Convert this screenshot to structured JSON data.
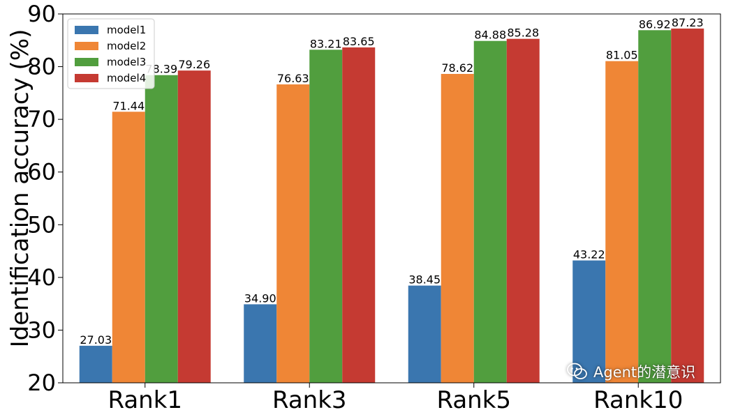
{
  "chart_data": {
    "type": "bar",
    "title": "",
    "xlabel": "",
    "ylabel": "Identification accuracy (%)",
    "ylim": [
      20,
      90
    ],
    "yticks": [
      20,
      30,
      40,
      50,
      60,
      70,
      80,
      90
    ],
    "grid": false,
    "legend_position": "top-left",
    "categories": [
      "Rank1",
      "Rank3",
      "Rank5",
      "Rank10"
    ],
    "series": [
      {
        "name": "model1",
        "color": "#3a76af",
        "values": [
          27.03,
          34.9,
          38.45,
          43.22
        ],
        "labels": [
          "27.03",
          "34.90",
          "38.45",
          "43.22"
        ]
      },
      {
        "name": "model2",
        "color": "#ef8636",
        "values": [
          71.44,
          76.63,
          78.62,
          81.05
        ],
        "labels": [
          "71.44",
          "76.63",
          "78.62",
          "81.05"
        ]
      },
      {
        "name": "model3",
        "color": "#519e3e",
        "values": [
          78.39,
          83.21,
          84.88,
          86.92
        ],
        "labels": [
          "78.39",
          "83.21",
          "84.88",
          "86.92"
        ]
      },
      {
        "name": "model4",
        "color": "#c53a32",
        "values": [
          79.26,
          83.65,
          85.28,
          87.23
        ],
        "labels": [
          "79.26",
          "83.65",
          "85.28",
          "87.23"
        ]
      }
    ]
  },
  "watermark": {
    "text": "Agent的潜意识",
    "icon": "wechat-icon"
  }
}
